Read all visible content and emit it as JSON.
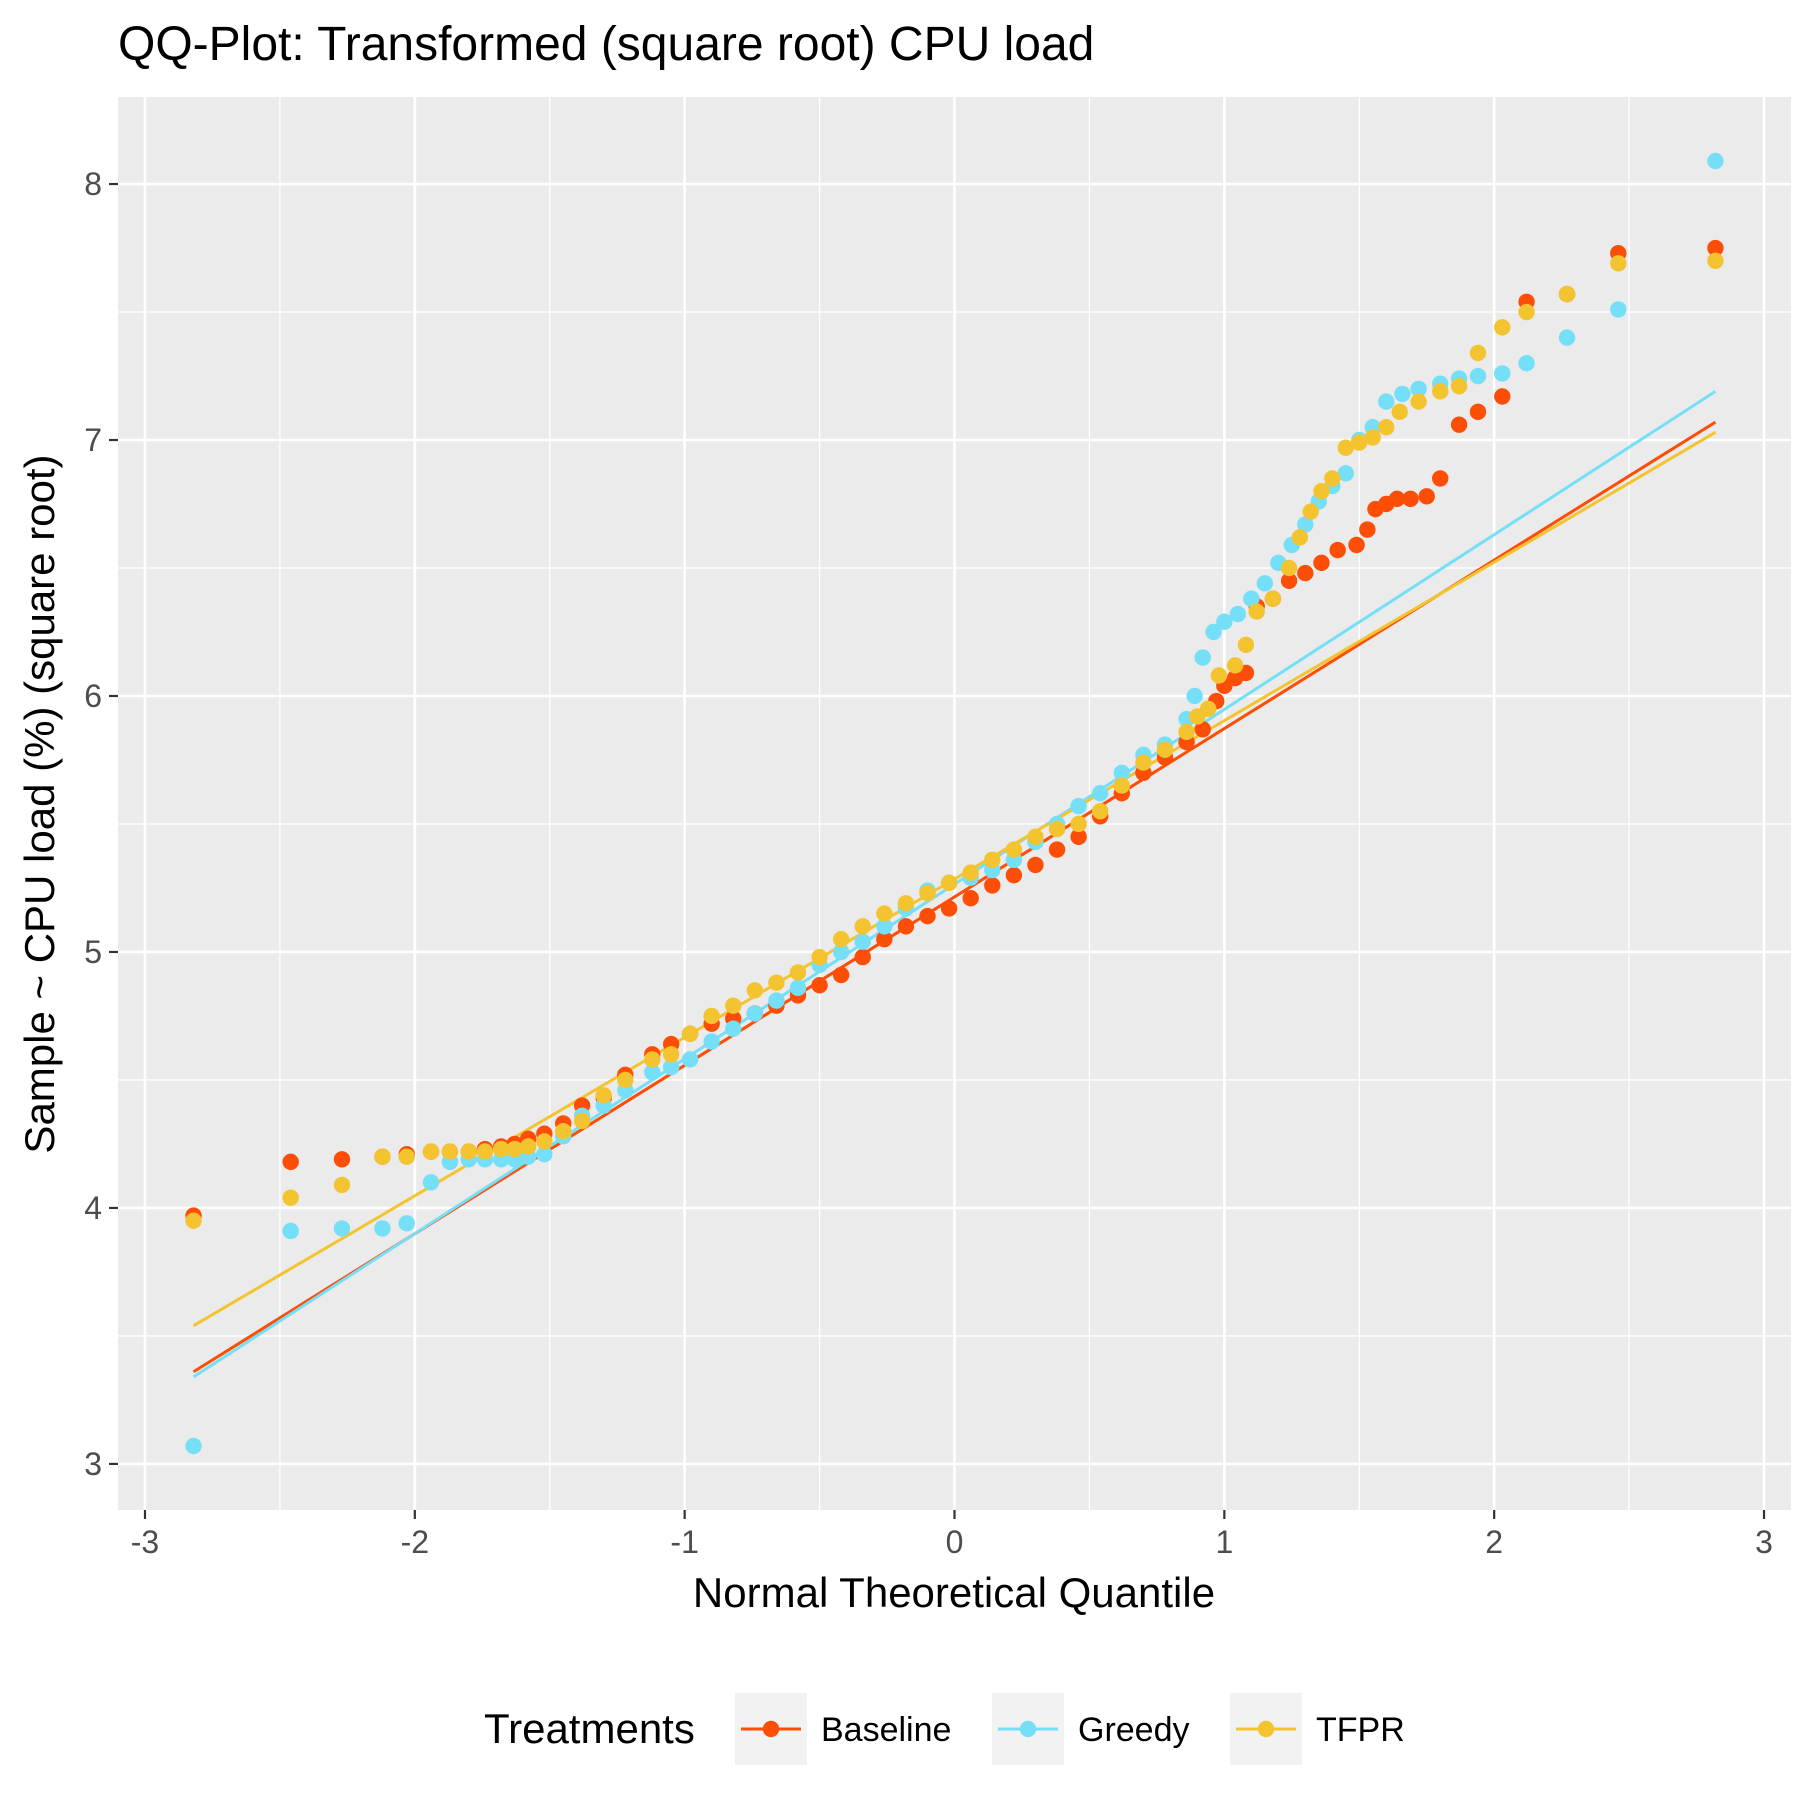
{
  "chart_data": {
    "type": "scatter",
    "title": "QQ-Plot: Transformed (square root) CPU load",
    "xlabel": "Normal Theoretical Quantile",
    "ylabel": "Sample ~ CPU load (%) (square root)",
    "xlim": [
      -3.1,
      3.1
    ],
    "ylim": [
      2.82,
      8.34
    ],
    "x_ticks": [
      -3,
      -2,
      -1,
      0,
      1,
      2,
      3
    ],
    "x_tick_labels": [
      "-3",
      "-2",
      "-1",
      "0",
      "1",
      "2",
      "3"
    ],
    "y_ticks": [
      3,
      4,
      5,
      6,
      7,
      8
    ],
    "y_tick_labels": [
      "3",
      "4",
      "5",
      "6",
      "7",
      "8"
    ],
    "grid": true,
    "legend": {
      "title": "Treatments",
      "position": "bottom"
    },
    "series": [
      {
        "name": "Baseline",
        "color": "#FC4E07",
        "line": {
          "x": [
            -2.82,
            2.82
          ],
          "y": [
            3.36,
            7.07
          ]
        },
        "points": [
          [
            -2.82,
            3.97
          ],
          [
            -2.46,
            4.18
          ],
          [
            -2.27,
            4.19
          ],
          [
            -2.12,
            4.2
          ],
          [
            -2.03,
            4.21
          ],
          [
            -1.94,
            4.22
          ],
          [
            -1.87,
            4.22
          ],
          [
            -1.8,
            4.22
          ],
          [
            -1.74,
            4.23
          ],
          [
            -1.68,
            4.24
          ],
          [
            -1.63,
            4.25
          ],
          [
            -1.58,
            4.27
          ],
          [
            -1.52,
            4.29
          ],
          [
            -1.45,
            4.33
          ],
          [
            -1.38,
            4.4
          ],
          [
            -1.3,
            4.43
          ],
          [
            -1.22,
            4.52
          ],
          [
            -1.12,
            4.6
          ],
          [
            -1.05,
            4.64
          ],
          [
            -0.98,
            4.68
          ],
          [
            -0.9,
            4.72
          ],
          [
            -0.82,
            4.74
          ],
          [
            -0.74,
            4.76
          ],
          [
            -0.66,
            4.79
          ],
          [
            -0.58,
            4.83
          ],
          [
            -0.5,
            4.87
          ],
          [
            -0.42,
            4.91
          ],
          [
            -0.34,
            4.98
          ],
          [
            -0.26,
            5.05
          ],
          [
            -0.18,
            5.1
          ],
          [
            -0.1,
            5.14
          ],
          [
            -0.02,
            5.17
          ],
          [
            0.06,
            5.21
          ],
          [
            0.14,
            5.26
          ],
          [
            0.22,
            5.3
          ],
          [
            0.3,
            5.34
          ],
          [
            0.38,
            5.4
          ],
          [
            0.46,
            5.45
          ],
          [
            0.54,
            5.53
          ],
          [
            0.62,
            5.62
          ],
          [
            0.7,
            5.7
          ],
          [
            0.78,
            5.76
          ],
          [
            0.86,
            5.82
          ],
          [
            0.92,
            5.87
          ],
          [
            0.97,
            5.98
          ],
          [
            1.0,
            6.04
          ],
          [
            1.04,
            6.07
          ],
          [
            1.08,
            6.09
          ],
          [
            1.12,
            6.35
          ],
          [
            1.18,
            6.38
          ],
          [
            1.24,
            6.45
          ],
          [
            1.3,
            6.48
          ],
          [
            1.36,
            6.52
          ],
          [
            1.42,
            6.57
          ],
          [
            1.49,
            6.59
          ],
          [
            1.53,
            6.65
          ],
          [
            1.56,
            6.73
          ],
          [
            1.6,
            6.75
          ],
          [
            1.64,
            6.77
          ],
          [
            1.69,
            6.77
          ],
          [
            1.75,
            6.78
          ],
          [
            1.8,
            6.85
          ],
          [
            1.87,
            7.06
          ],
          [
            1.94,
            7.11
          ],
          [
            2.03,
            7.17
          ],
          [
            2.12,
            7.54
          ],
          [
            2.27,
            7.57
          ],
          [
            2.46,
            7.73
          ],
          [
            2.82,
            7.75
          ]
        ]
      },
      {
        "name": "Greedy",
        "color": "#75DFF7",
        "line": {
          "x": [
            -2.82,
            2.82
          ],
          "y": [
            3.34,
            7.19
          ]
        },
        "points": [
          [
            -2.82,
            3.07
          ],
          [
            -2.46,
            3.91
          ],
          [
            -2.27,
            3.92
          ],
          [
            -2.12,
            3.92
          ],
          [
            -2.03,
            3.94
          ],
          [
            -1.94,
            4.1
          ],
          [
            -1.87,
            4.18
          ],
          [
            -1.8,
            4.19
          ],
          [
            -1.74,
            4.19
          ],
          [
            -1.68,
            4.19
          ],
          [
            -1.63,
            4.19
          ],
          [
            -1.58,
            4.2
          ],
          [
            -1.52,
            4.21
          ],
          [
            -1.45,
            4.28
          ],
          [
            -1.38,
            4.36
          ],
          [
            -1.3,
            4.4
          ],
          [
            -1.22,
            4.46
          ],
          [
            -1.12,
            4.53
          ],
          [
            -1.05,
            4.55
          ],
          [
            -0.98,
            4.58
          ],
          [
            -0.9,
            4.65
          ],
          [
            -0.82,
            4.7
          ],
          [
            -0.74,
            4.76
          ],
          [
            -0.66,
            4.81
          ],
          [
            -0.58,
            4.86
          ],
          [
            -0.5,
            4.95
          ],
          [
            -0.42,
            5.0
          ],
          [
            -0.34,
            5.04
          ],
          [
            -0.26,
            5.1
          ],
          [
            -0.18,
            5.17
          ],
          [
            -0.1,
            5.24
          ],
          [
            -0.02,
            5.27
          ],
          [
            0.06,
            5.29
          ],
          [
            0.14,
            5.32
          ],
          [
            0.22,
            5.36
          ],
          [
            0.3,
            5.43
          ],
          [
            0.38,
            5.5
          ],
          [
            0.46,
            5.57
          ],
          [
            0.54,
            5.62
          ],
          [
            0.62,
            5.7
          ],
          [
            0.7,
            5.77
          ],
          [
            0.78,
            5.81
          ],
          [
            0.86,
            5.91
          ],
          [
            0.89,
            6.0
          ],
          [
            0.92,
            6.15
          ],
          [
            0.96,
            6.25
          ],
          [
            1.0,
            6.29
          ],
          [
            1.05,
            6.32
          ],
          [
            1.1,
            6.38
          ],
          [
            1.15,
            6.44
          ],
          [
            1.2,
            6.52
          ],
          [
            1.25,
            6.59
          ],
          [
            1.3,
            6.67
          ],
          [
            1.35,
            6.76
          ],
          [
            1.4,
            6.82
          ],
          [
            1.45,
            6.87
          ],
          [
            1.5,
            7.0
          ],
          [
            1.55,
            7.05
          ],
          [
            1.6,
            7.15
          ],
          [
            1.66,
            7.18
          ],
          [
            1.72,
            7.2
          ],
          [
            1.8,
            7.22
          ],
          [
            1.87,
            7.24
          ],
          [
            1.94,
            7.25
          ],
          [
            2.03,
            7.26
          ],
          [
            2.12,
            7.3
          ],
          [
            2.27,
            7.4
          ],
          [
            2.46,
            7.51
          ],
          [
            2.82,
            8.09
          ]
        ]
      },
      {
        "name": "TFPR",
        "color": "#F4C430",
        "line": {
          "x": [
            -2.82,
            2.82
          ],
          "y": [
            3.54,
            7.03
          ]
        },
        "points": [
          [
            -2.82,
            3.95
          ],
          [
            -2.46,
            4.04
          ],
          [
            -2.27,
            4.09
          ],
          [
            -2.12,
            4.2
          ],
          [
            -2.03,
            4.2
          ],
          [
            -1.94,
            4.22
          ],
          [
            -1.87,
            4.22
          ],
          [
            -1.8,
            4.22
          ],
          [
            -1.74,
            4.22
          ],
          [
            -1.68,
            4.23
          ],
          [
            -1.63,
            4.23
          ],
          [
            -1.58,
            4.24
          ],
          [
            -1.52,
            4.26
          ],
          [
            -1.45,
            4.3
          ],
          [
            -1.38,
            4.34
          ],
          [
            -1.3,
            4.44
          ],
          [
            -1.22,
            4.5
          ],
          [
            -1.12,
            4.58
          ],
          [
            -1.05,
            4.6
          ],
          [
            -0.98,
            4.68
          ],
          [
            -0.9,
            4.75
          ],
          [
            -0.82,
            4.79
          ],
          [
            -0.74,
            4.85
          ],
          [
            -0.66,
            4.88
          ],
          [
            -0.58,
            4.92
          ],
          [
            -0.5,
            4.98
          ],
          [
            -0.42,
            5.05
          ],
          [
            -0.34,
            5.1
          ],
          [
            -0.26,
            5.15
          ],
          [
            -0.18,
            5.19
          ],
          [
            -0.1,
            5.23
          ],
          [
            -0.02,
            5.27
          ],
          [
            0.06,
            5.31
          ],
          [
            0.14,
            5.36
          ],
          [
            0.22,
            5.4
          ],
          [
            0.3,
            5.45
          ],
          [
            0.38,
            5.48
          ],
          [
            0.46,
            5.5
          ],
          [
            0.54,
            5.55
          ],
          [
            0.62,
            5.65
          ],
          [
            0.7,
            5.74
          ],
          [
            0.78,
            5.79
          ],
          [
            0.86,
            5.86
          ],
          [
            0.9,
            5.92
          ],
          [
            0.94,
            5.95
          ],
          [
            0.98,
            6.08
          ],
          [
            1.04,
            6.12
          ],
          [
            1.08,
            6.2
          ],
          [
            1.12,
            6.33
          ],
          [
            1.18,
            6.38
          ],
          [
            1.24,
            6.5
          ],
          [
            1.28,
            6.62
          ],
          [
            1.32,
            6.72
          ],
          [
            1.36,
            6.8
          ],
          [
            1.4,
            6.85
          ],
          [
            1.45,
            6.97
          ],
          [
            1.5,
            6.99
          ],
          [
            1.55,
            7.01
          ],
          [
            1.6,
            7.05
          ],
          [
            1.65,
            7.11
          ],
          [
            1.72,
            7.15
          ],
          [
            1.8,
            7.19
          ],
          [
            1.87,
            7.21
          ],
          [
            1.94,
            7.34
          ],
          [
            2.03,
            7.44
          ],
          [
            2.12,
            7.5
          ],
          [
            2.27,
            7.57
          ],
          [
            2.46,
            7.69
          ],
          [
            2.82,
            7.7
          ]
        ]
      }
    ]
  }
}
